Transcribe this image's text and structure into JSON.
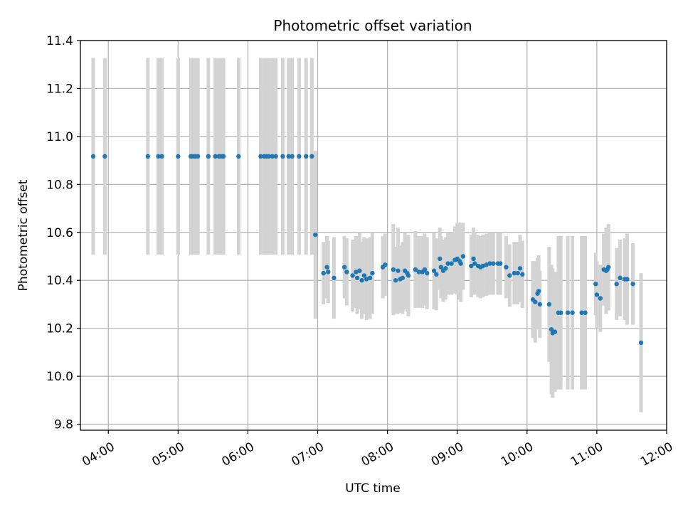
{
  "chart_data": {
    "type": "scatter",
    "title": "Photometric offset variation",
    "xlabel": "UTC time",
    "ylabel": "Photometric offset",
    "xlim": [
      "03:36",
      "12:00"
    ],
    "ylim": [
      9.775,
      11.4
    ],
    "x_ticks": [
      "04:00",
      "05:00",
      "06:00",
      "07:00",
      "08:00",
      "09:00",
      "10:00",
      "11:00",
      "12:00"
    ],
    "y_ticks": [
      "9.8",
      "10.0",
      "10.2",
      "10.4",
      "10.6",
      "10.8",
      "11.0",
      "11.2",
      "11.4"
    ],
    "grid": true,
    "colors": {
      "points": "#1f77b4",
      "errorbars": "#d3d3d3",
      "grid": "#b0b0b0"
    },
    "series": [
      {
        "points": [
          [
            "03:47",
            10.917,
            0.41
          ],
          [
            "03:57",
            10.917,
            0.41
          ],
          [
            "04:34",
            10.917,
            0.41
          ],
          [
            "04:43",
            10.917,
            0.41
          ],
          [
            "04:46",
            10.917,
            0.41
          ],
          [
            "05:00",
            10.917,
            0.41
          ],
          [
            "05:11",
            10.917,
            0.41
          ],
          [
            "05:12",
            10.917,
            0.41
          ],
          [
            "05:14",
            10.917,
            0.41
          ],
          [
            "05:15",
            10.917,
            0.41
          ],
          [
            "05:17",
            10.917,
            0.41
          ],
          [
            "05:26",
            10.917,
            0.41
          ],
          [
            "05:32",
            10.917,
            0.41
          ],
          [
            "05:35",
            10.917,
            0.41
          ],
          [
            "05:36",
            10.917,
            0.41
          ],
          [
            "05:38",
            10.917,
            0.41
          ],
          [
            "05:39",
            10.917,
            0.41
          ],
          [
            "05:52",
            10.917,
            0.41
          ],
          [
            "06:11",
            10.917,
            0.41
          ],
          [
            "06:14",
            10.917,
            0.41
          ],
          [
            "06:16",
            10.917,
            0.41
          ],
          [
            "06:18",
            10.917,
            0.41
          ],
          [
            "06:21",
            10.917,
            0.41
          ],
          [
            "06:24",
            10.917,
            0.41
          ],
          [
            "06:30",
            10.917,
            0.41
          ],
          [
            "06:35",
            10.917,
            0.41
          ],
          [
            "06:38",
            10.917,
            0.41
          ],
          [
            "06:44",
            10.917,
            0.41
          ],
          [
            "06:50",
            10.917,
            0.41
          ],
          [
            "06:55",
            10.917,
            0.41
          ],
          [
            "06:58",
            10.59,
            0.35
          ],
          [
            "07:05",
            10.43,
            0.13
          ],
          [
            "07:08",
            10.455,
            0.13
          ],
          [
            "07:09",
            10.435,
            0.13
          ],
          [
            "07:14",
            10.41,
            0.17
          ],
          [
            "07:23",
            10.455,
            0.13
          ],
          [
            "07:25",
            10.435,
            0.14
          ],
          [
            "07:30",
            10.42,
            0.15
          ],
          [
            "07:33",
            10.435,
            0.15
          ],
          [
            "07:34",
            10.41,
            0.15
          ],
          [
            "07:36",
            10.44,
            0.16
          ],
          [
            "07:38",
            10.4,
            0.16
          ],
          [
            "07:40",
            10.42,
            0.16
          ],
          [
            "07:42",
            10.405,
            0.17
          ],
          [
            "07:45",
            10.41,
            0.17
          ],
          [
            "07:47",
            10.43,
            0.17
          ],
          [
            "07:56",
            10.455,
            0.13
          ],
          [
            "07:58",
            10.465,
            0.13
          ],
          [
            "08:05",
            10.445,
            0.19
          ],
          [
            "08:07",
            10.4,
            0.14
          ],
          [
            "08:09",
            10.44,
            0.18
          ],
          [
            "08:11",
            10.405,
            0.14
          ],
          [
            "08:13",
            10.41,
            0.15
          ],
          [
            "08:15",
            10.44,
            0.16
          ],
          [
            "08:17",
            10.43,
            0.16
          ],
          [
            "08:18",
            10.42,
            0.17
          ],
          [
            "08:24",
            10.445,
            0.16
          ],
          [
            "08:27",
            10.435,
            0.15
          ],
          [
            "08:30",
            10.435,
            0.15
          ],
          [
            "08:32",
            10.445,
            0.15
          ],
          [
            "08:34",
            10.43,
            0.15
          ],
          [
            "08:40",
            10.44,
            0.16
          ],
          [
            "08:42",
            10.425,
            0.15
          ],
          [
            "08:45",
            10.49,
            0.13
          ],
          [
            "08:46",
            10.455,
            0.13
          ],
          [
            "08:48",
            10.44,
            0.13
          ],
          [
            "08:50",
            10.45,
            0.13
          ],
          [
            "08:52",
            10.47,
            0.13
          ],
          [
            "08:55",
            10.47,
            0.13
          ],
          [
            "08:58",
            10.485,
            0.14
          ],
          [
            "09:00",
            10.49,
            0.15
          ],
          [
            "09:02",
            10.48,
            0.16
          ],
          [
            "09:03",
            10.47,
            0.16
          ],
          [
            "09:05",
            10.5,
            0.14
          ],
          [
            "09:12",
            10.46,
            0.13
          ],
          [
            "09:14",
            10.49,
            0.13
          ],
          [
            "09:15",
            10.47,
            0.13
          ],
          [
            "09:18",
            10.46,
            0.13
          ],
          [
            "09:20",
            10.455,
            0.13
          ],
          [
            "09:22",
            10.46,
            0.13
          ],
          [
            "09:25",
            10.465,
            0.13
          ],
          [
            "09:28",
            10.47,
            0.13
          ],
          [
            "09:31",
            10.47,
            0.13
          ],
          [
            "09:35",
            10.47,
            0.13
          ],
          [
            "09:37",
            10.47,
            0.13
          ],
          [
            "09:42",
            10.455,
            0.13
          ],
          [
            "09:45",
            10.42,
            0.13
          ],
          [
            "09:49",
            10.43,
            0.13
          ],
          [
            "09:52",
            10.43,
            0.13
          ],
          [
            "09:54",
            10.45,
            0.14
          ],
          [
            "09:56",
            10.425,
            0.14
          ],
          [
            "10:05",
            10.32,
            0.16
          ],
          [
            "10:07",
            10.31,
            0.17
          ],
          [
            "10:09",
            10.345,
            0.15
          ],
          [
            "10:10",
            10.355,
            0.15
          ],
          [
            "10:11",
            10.3,
            0.14
          ],
          [
            "10:19",
            10.3,
            0.24
          ],
          [
            "10:21",
            10.195,
            0.27
          ],
          [
            "10:22",
            10.18,
            0.27
          ],
          [
            "10:24",
            10.185,
            0.25
          ],
          [
            "10:27",
            10.265,
            0.32
          ],
          [
            "10:29",
            10.265,
            0.32
          ],
          [
            "10:35",
            10.265,
            0.32
          ],
          [
            "10:39",
            10.265,
            0.32
          ],
          [
            "10:47",
            10.265,
            0.32
          ],
          [
            "10:50",
            10.265,
            0.32
          ],
          [
            "10:59",
            10.385,
            0.13
          ],
          [
            "11:00",
            10.34,
            0.14
          ],
          [
            "11:03",
            10.325,
            0.14
          ],
          [
            "11:06",
            10.445,
            0.15
          ],
          [
            "11:08",
            10.44,
            0.18
          ],
          [
            "11:09",
            10.445,
            0.16
          ],
          [
            "11:10",
            10.455,
            0.18
          ],
          [
            "11:17",
            10.385,
            0.15
          ],
          [
            "11:20",
            10.41,
            0.16
          ],
          [
            "11:24",
            10.405,
            0.17
          ],
          [
            "11:26",
            10.405,
            0.19
          ],
          [
            "11:31",
            10.385,
            0.17
          ],
          [
            "11:38",
            10.14,
            0.29
          ]
        ]
      }
    ]
  }
}
